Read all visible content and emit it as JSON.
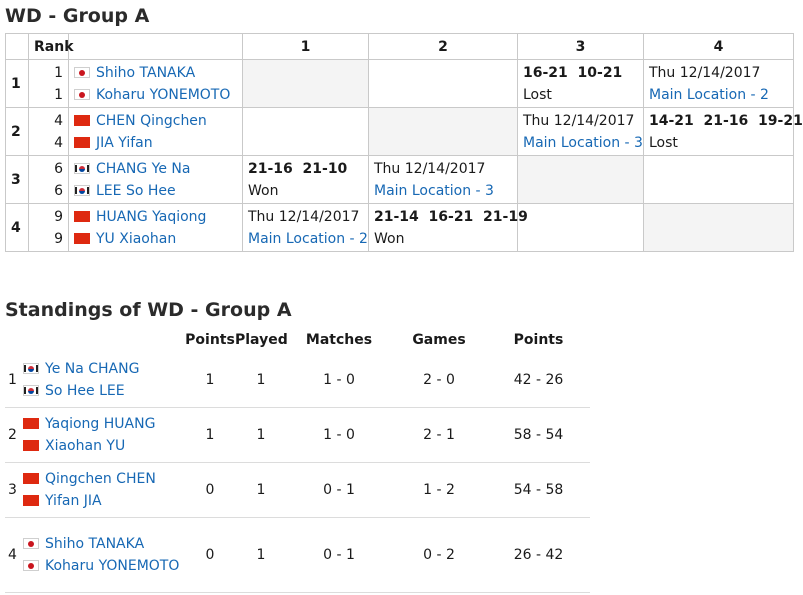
{
  "title": "WD - Group A",
  "grid": {
    "header": {
      "rank": "Rank",
      "cols": [
        "1",
        "2",
        "3",
        "4"
      ]
    },
    "rows": [
      {
        "pos": "1",
        "players": [
          {
            "rank": "1",
            "flag": "japan-flag",
            "name": "Shiho TANAKA"
          },
          {
            "rank": "1",
            "flag": "japan-flag",
            "name": "Koharu YONEMOTO"
          }
        ],
        "cells": [
          {
            "type": "self"
          },
          {
            "type": "empty"
          },
          {
            "type": "result",
            "score": "16-21  10-21",
            "outcome": "Lost"
          },
          {
            "type": "schedule",
            "date": "Thu 12/14/2017",
            "location": "Main Location - 2"
          }
        ]
      },
      {
        "pos": "2",
        "players": [
          {
            "rank": "4",
            "flag": "china-flag",
            "name": "CHEN Qingchen"
          },
          {
            "rank": "4",
            "flag": "china-flag",
            "name": "JIA Yifan"
          }
        ],
        "cells": [
          {
            "type": "empty"
          },
          {
            "type": "self"
          },
          {
            "type": "schedule",
            "date": "Thu 12/14/2017",
            "location": "Main Location - 3"
          },
          {
            "type": "result",
            "score": "14-21  21-16  19-21",
            "outcome": "Lost"
          }
        ]
      },
      {
        "pos": "3",
        "players": [
          {
            "rank": "6",
            "flag": "korea-flag",
            "name": "CHANG Ye Na"
          },
          {
            "rank": "6",
            "flag": "korea-flag",
            "name": "LEE So Hee"
          }
        ],
        "cells": [
          {
            "type": "result",
            "score": "21-16  21-10",
            "outcome": "Won"
          },
          {
            "type": "schedule",
            "date": "Thu 12/14/2017",
            "location": "Main Location - 3"
          },
          {
            "type": "self"
          },
          {
            "type": "empty"
          }
        ]
      },
      {
        "pos": "4",
        "players": [
          {
            "rank": "9",
            "flag": "china-flag",
            "name": "HUANG Yaqiong"
          },
          {
            "rank": "9",
            "flag": "china-flag",
            "name": "YU Xiaohan"
          }
        ],
        "cells": [
          {
            "type": "schedule",
            "date": "Thu 12/14/2017",
            "location": "Main Location - 2"
          },
          {
            "type": "result",
            "score": "21-14  16-21  21-19",
            "outcome": "Won"
          },
          {
            "type": "empty"
          },
          {
            "type": "self"
          }
        ]
      }
    ]
  },
  "standings": {
    "title": "Standings of WD - Group A",
    "headers": {
      "points_label": "Points",
      "played": "Played",
      "matches": "Matches",
      "games": "Games",
      "points": "Points"
    },
    "rows": [
      {
        "pos": "1",
        "players": [
          {
            "flag": "korea-flag",
            "name": "Ye Na CHANG"
          },
          {
            "flag": "korea-flag",
            "name": "So Hee LEE"
          }
        ],
        "pts": "1",
        "played": "1",
        "matches": "1 - 0",
        "games": "2 - 0",
        "points": "42 - 26"
      },
      {
        "pos": "2",
        "players": [
          {
            "flag": "china-flag",
            "name": "Yaqiong HUANG"
          },
          {
            "flag": "china-flag",
            "name": "Xiaohan YU"
          }
        ],
        "pts": "1",
        "played": "1",
        "matches": "1 - 0",
        "games": "2 - 1",
        "points": "58 - 54"
      },
      {
        "pos": "3",
        "players": [
          {
            "flag": "china-flag",
            "name": "Qingchen CHEN"
          },
          {
            "flag": "china-flag",
            "name": "Yifan JIA"
          }
        ],
        "pts": "0",
        "played": "1",
        "matches": "0 - 1",
        "games": "1 - 2",
        "points": "54 - 58"
      },
      {
        "pos": "4",
        "players": [
          {
            "flag": "japan-flag",
            "name": "Shiho TANAKA"
          },
          {
            "flag": "japan-flag",
            "name": "Koharu YONEMOTO"
          }
        ],
        "pts": "0",
        "played": "1",
        "matches": "0 - 1",
        "games": "0 - 2",
        "points": "26 - 42"
      }
    ]
  }
}
